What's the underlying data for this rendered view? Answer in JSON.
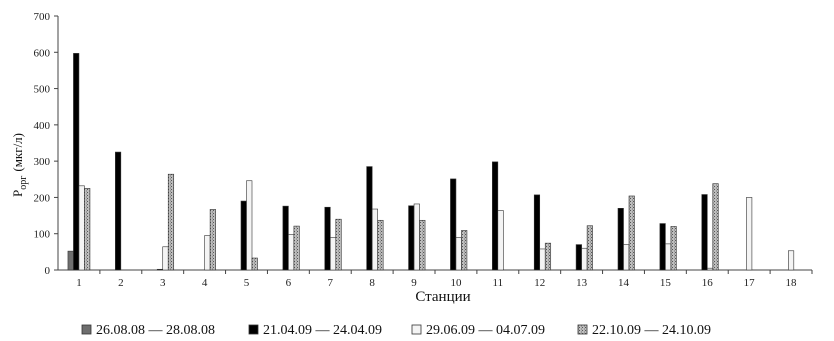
{
  "chart_data": {
    "type": "bar",
    "xlabel": "Станции",
    "ylabel_main": "P",
    "ylabel_sub": "орг",
    "ylabel_unit": "(мкг/л)",
    "ylim": [
      0,
      700
    ],
    "yticks": [
      0,
      100,
      200,
      300,
      400,
      500,
      600,
      700
    ],
    "categories": [
      "1",
      "2",
      "3",
      "4",
      "5",
      "6",
      "7",
      "8",
      "9",
      "10",
      "11",
      "12",
      "13",
      "14",
      "15",
      "16",
      "17",
      "18"
    ],
    "grid": false,
    "legend_position": "bottom",
    "series": [
      {
        "name": "26.08.08 — 28.08.08",
        "color": "#6e6e6e",
        "pattern": "solid",
        "values": [
          52,
          0,
          0,
          0,
          0,
          0,
          0,
          0,
          0,
          0,
          0,
          0,
          0,
          0,
          0,
          0,
          null,
          null
        ]
      },
      {
        "name": "21.04.09 — 24.04.09",
        "color": "#000000",
        "pattern": "solid",
        "values": [
          597,
          325,
          2,
          0,
          190,
          176,
          173,
          285,
          177,
          251,
          298,
          207,
          70,
          170,
          128,
          208,
          null,
          null
        ]
      },
      {
        "name": "29.06.09 — 04.07.09",
        "color": "#f4f4f4",
        "pattern": "solid",
        "values": [
          232,
          0,
          64,
          95,
          246,
          98,
          90,
          168,
          182,
          90,
          164,
          58,
          60,
          70,
          72,
          5,
          200,
          53
        ]
      },
      {
        "name": "22.10.09 — 24.10.09",
        "color": "#a8a8a8",
        "pattern": "dotted",
        "values": [
          225,
          0,
          264,
          167,
          33,
          121,
          140,
          137,
          137,
          109,
          0,
          74,
          122,
          204,
          120,
          238,
          null,
          null
        ]
      }
    ]
  }
}
